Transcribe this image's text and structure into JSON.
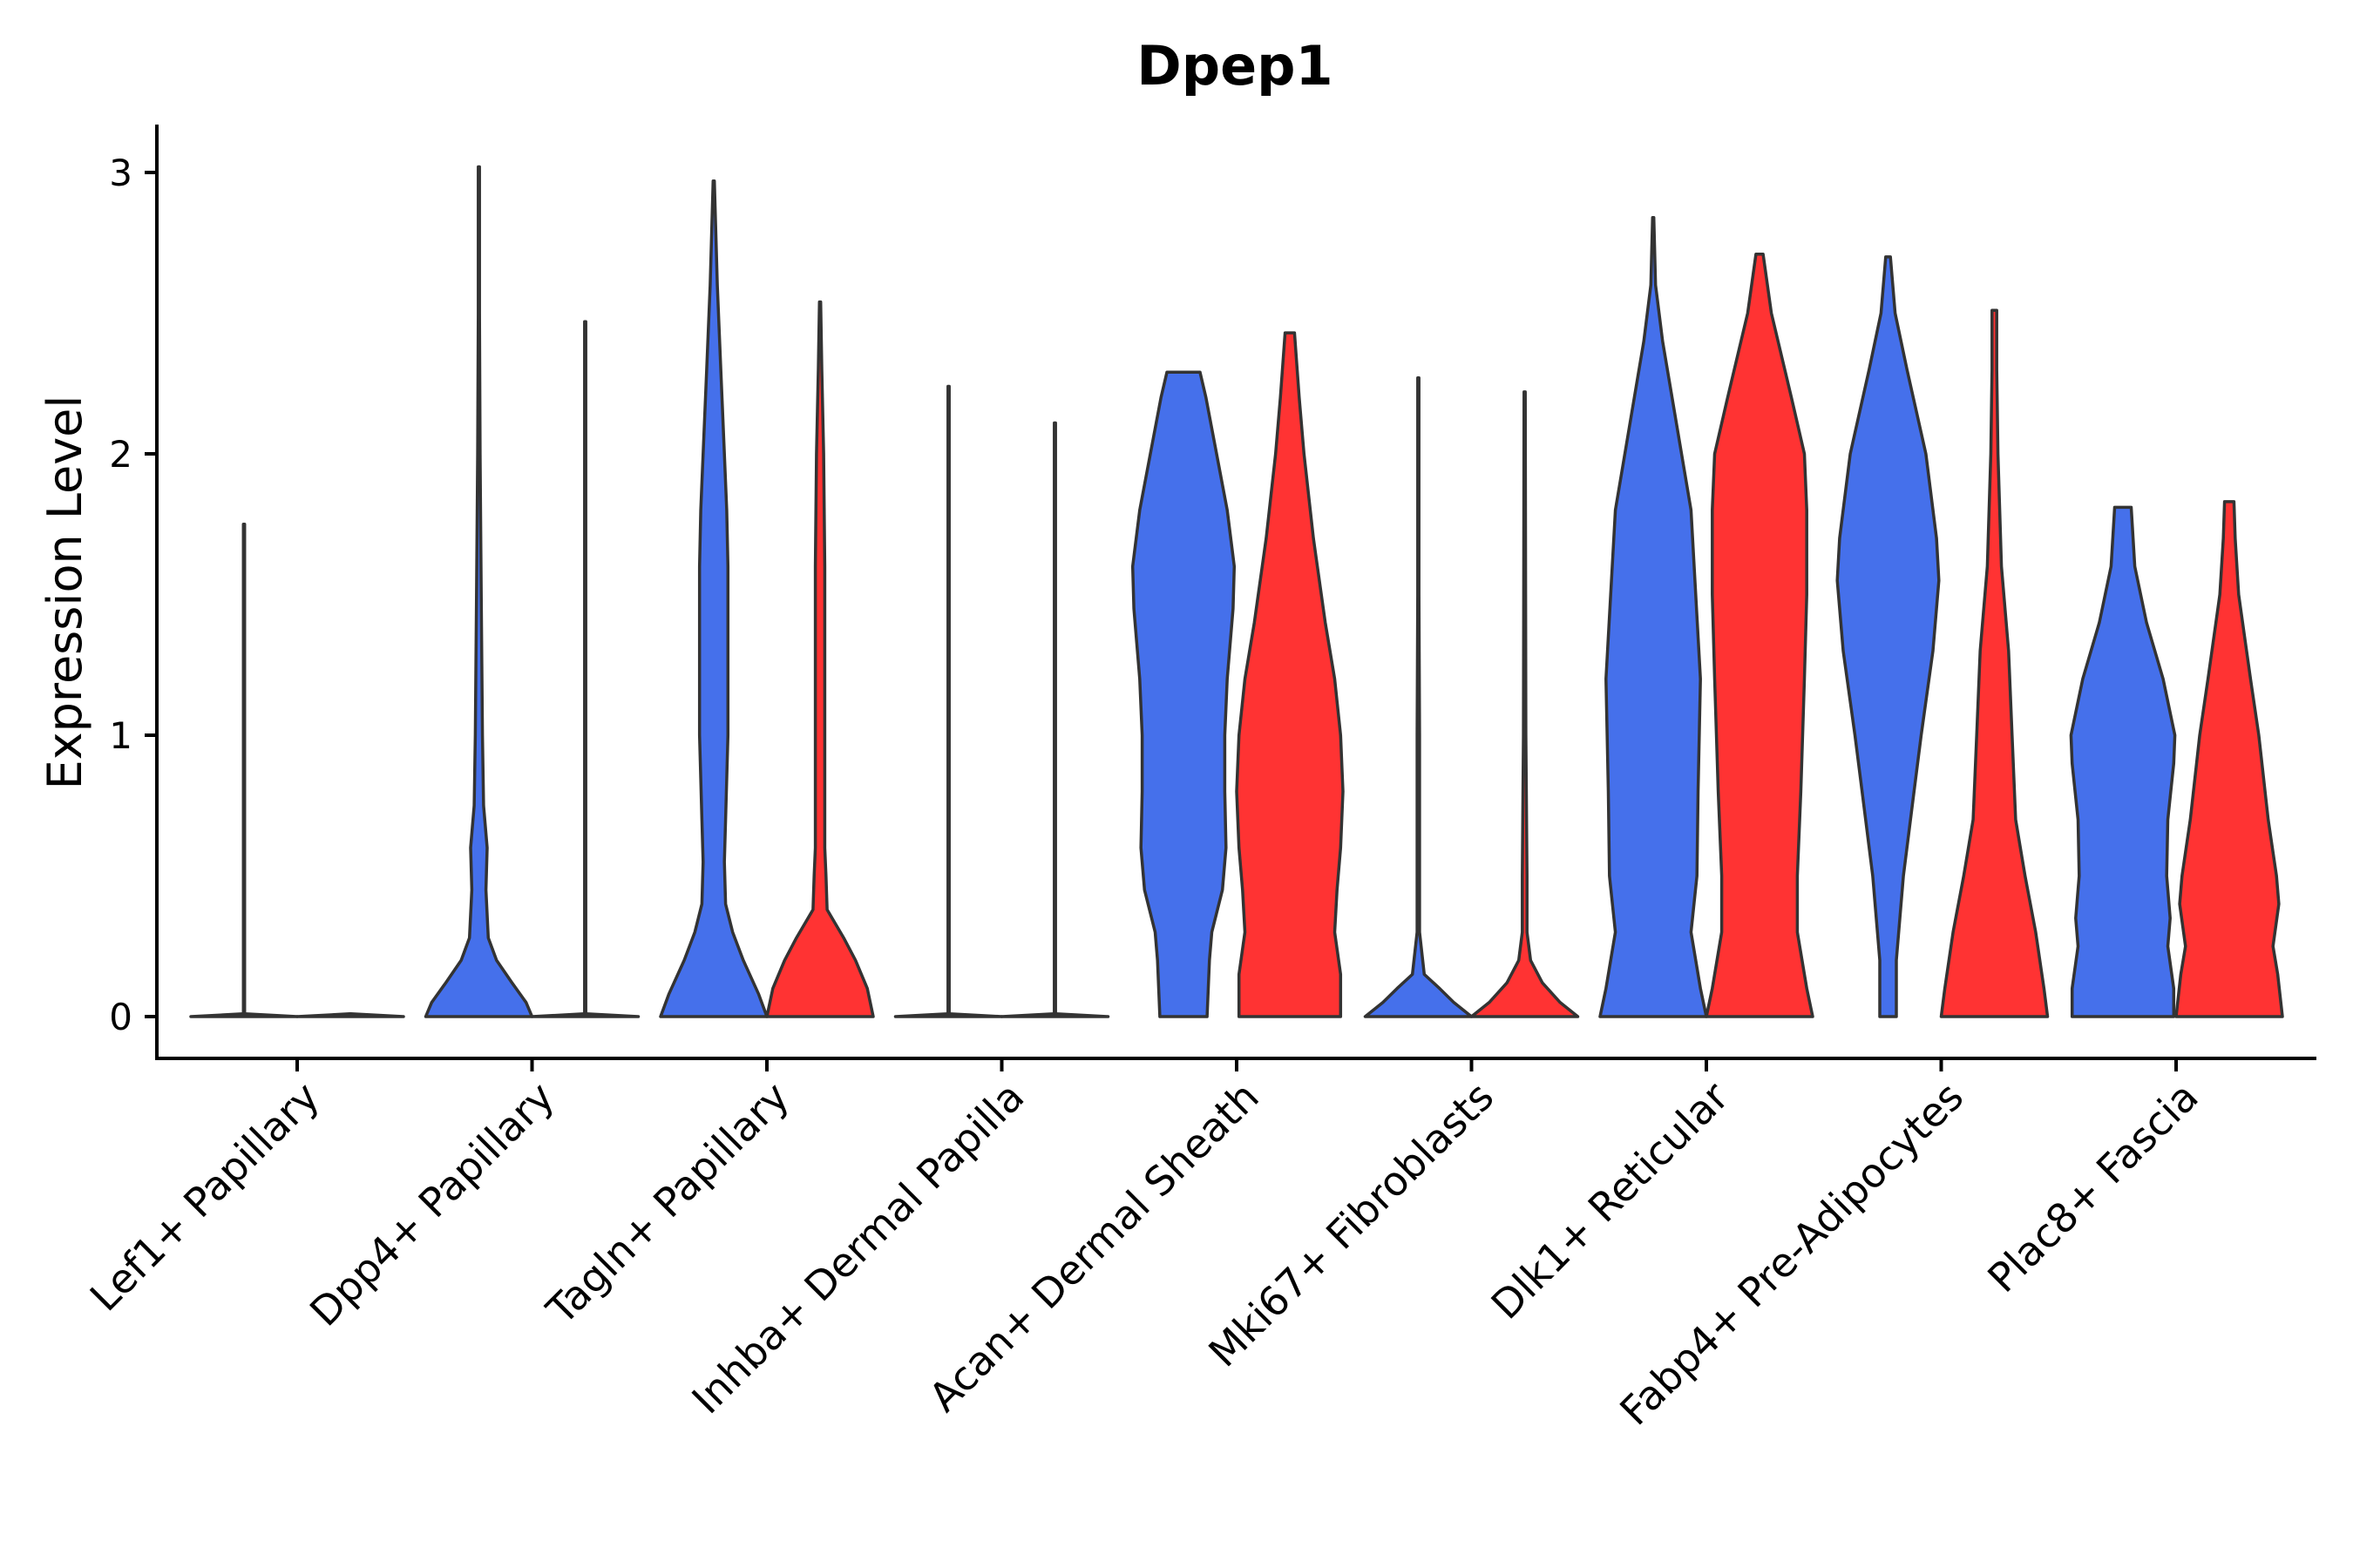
{
  "chart_data": {
    "type": "violin",
    "title": "Dpep1",
    "xlabel": "",
    "ylabel": "Expression Level",
    "ylim": [
      -0.15,
      3.2
    ],
    "yticks": [
      0,
      1,
      2,
      3
    ],
    "grid": false,
    "legend": "none",
    "group_colors": [
      "#4570EB",
      "#FF3333"
    ],
    "categories": [
      "Lef1+ Papillary",
      "Dpp4+ Papillary",
      "Tagln+ Papillary",
      "Inhba+ Dermal Papilla",
      "Acan+ Dermal Sheath",
      "Mki67+ Fibroblasts",
      "Dlk1+ Reticular",
      "Fabp4+ Pre-Adipocytes",
      "Plac8+ Fascia"
    ],
    "violins": [
      {
        "category": "Lef1+ Papillary",
        "group": 1,
        "max": 1.75,
        "profile": [
          [
            0,
            0.45
          ],
          [
            0.01,
            0.005
          ],
          [
            1.75,
            0.005
          ]
        ]
      },
      {
        "category": "Lef1+ Papillary",
        "group": 2,
        "max": 0.0,
        "profile": [
          [
            0,
            0.45
          ],
          [
            0.01,
            0.005
          ]
        ]
      },
      {
        "category": "Dpp4+ Papillary",
        "group": 1,
        "max": 3.02,
        "profile": [
          [
            0,
            0.45
          ],
          [
            0.05,
            0.4
          ],
          [
            0.12,
            0.28
          ],
          [
            0.2,
            0.15
          ],
          [
            0.28,
            0.08
          ],
          [
            0.45,
            0.06
          ],
          [
            0.6,
            0.07
          ],
          [
            0.75,
            0.04
          ],
          [
            1.0,
            0.03
          ],
          [
            1.5,
            0.02
          ],
          [
            2.0,
            0.01
          ],
          [
            2.5,
            0.005
          ],
          [
            3.02,
            0.005
          ]
        ]
      },
      {
        "category": "Dpp4+ Papillary",
        "group": 2,
        "max": 2.47,
        "profile": [
          [
            0,
            0.45
          ],
          [
            0.01,
            0.005
          ],
          [
            2.47,
            0.005
          ]
        ]
      },
      {
        "category": "Tagln+ Papillary",
        "group": 1,
        "max": 2.97,
        "profile": [
          [
            0,
            0.45
          ],
          [
            0.08,
            0.38
          ],
          [
            0.2,
            0.25
          ],
          [
            0.3,
            0.16
          ],
          [
            0.4,
            0.1
          ],
          [
            0.55,
            0.09
          ],
          [
            0.7,
            0.1
          ],
          [
            1.0,
            0.12
          ],
          [
            1.3,
            0.12
          ],
          [
            1.6,
            0.12
          ],
          [
            1.8,
            0.11
          ],
          [
            2.0,
            0.09
          ],
          [
            2.3,
            0.06
          ],
          [
            2.6,
            0.03
          ],
          [
            2.97,
            0.005
          ]
        ]
      },
      {
        "category": "Tagln+ Papillary",
        "group": 2,
        "max": 2.54,
        "profile": [
          [
            0,
            0.45
          ],
          [
            0.1,
            0.4
          ],
          [
            0.2,
            0.3
          ],
          [
            0.28,
            0.2
          ],
          [
            0.38,
            0.06
          ],
          [
            0.5,
            0.05
          ],
          [
            0.6,
            0.04
          ],
          [
            0.8,
            0.04
          ],
          [
            1.2,
            0.04
          ],
          [
            1.6,
            0.04
          ],
          [
            2.0,
            0.03
          ],
          [
            2.3,
            0.015
          ],
          [
            2.54,
            0.005
          ]
        ]
      },
      {
        "category": "Inhba+ Dermal Papilla",
        "group": 1,
        "max": 2.24,
        "profile": [
          [
            0,
            0.45
          ],
          [
            0.01,
            0.005
          ],
          [
            2.24,
            0.005
          ]
        ]
      },
      {
        "category": "Inhba+ Dermal Papilla",
        "group": 2,
        "max": 2.11,
        "profile": [
          [
            0,
            0.45
          ],
          [
            0.01,
            0.005
          ],
          [
            2.11,
            0.005
          ]
        ]
      },
      {
        "category": "Acan+ Dermal Sheath",
        "group": 1,
        "max": 2.29,
        "profile": [
          [
            0,
            0.2
          ],
          [
            0.2,
            0.22
          ],
          [
            0.3,
            0.24
          ],
          [
            0.45,
            0.33
          ],
          [
            0.6,
            0.36
          ],
          [
            0.8,
            0.35
          ],
          [
            1.0,
            0.35
          ],
          [
            1.2,
            0.37
          ],
          [
            1.45,
            0.42
          ],
          [
            1.6,
            0.43
          ],
          [
            1.8,
            0.37
          ],
          [
            2.0,
            0.28
          ],
          [
            2.2,
            0.19
          ],
          [
            2.29,
            0.14
          ]
        ]
      },
      {
        "category": "Acan+ Dermal Sheath",
        "group": 2,
        "max": 2.43,
        "profile": [
          [
            0,
            0.43
          ],
          [
            0.15,
            0.43
          ],
          [
            0.3,
            0.38
          ],
          [
            0.45,
            0.4
          ],
          [
            0.6,
            0.43
          ],
          [
            0.8,
            0.45
          ],
          [
            1.0,
            0.43
          ],
          [
            1.2,
            0.38
          ],
          [
            1.4,
            0.3
          ],
          [
            1.7,
            0.2
          ],
          [
            2.0,
            0.12
          ],
          [
            2.2,
            0.08
          ],
          [
            2.43,
            0.04
          ]
        ]
      },
      {
        "category": "Mki67+ Fibroblasts",
        "group": 1,
        "max": 2.27,
        "profile": [
          [
            0,
            0.45
          ],
          [
            0.05,
            0.3
          ],
          [
            0.1,
            0.18
          ],
          [
            0.15,
            0.05
          ],
          [
            0.3,
            0.01
          ],
          [
            0.6,
            0.01
          ],
          [
            1.0,
            0.01
          ],
          [
            1.5,
            0.005
          ],
          [
            2.27,
            0.005
          ]
        ]
      },
      {
        "category": "Mki67+ Fibroblasts",
        "group": 2,
        "max": 2.22,
        "profile": [
          [
            0,
            0.45
          ],
          [
            0.05,
            0.3
          ],
          [
            0.12,
            0.15
          ],
          [
            0.2,
            0.05
          ],
          [
            0.3,
            0.02
          ],
          [
            0.5,
            0.02
          ],
          [
            1.0,
            0.01
          ],
          [
            1.5,
            0.008
          ],
          [
            2.22,
            0.005
          ]
        ]
      },
      {
        "category": "Dlk1+ Reticular",
        "group": 1,
        "max": 2.84,
        "profile": [
          [
            0,
            0.45
          ],
          [
            0.1,
            0.4
          ],
          [
            0.3,
            0.32
          ],
          [
            0.5,
            0.37
          ],
          [
            0.8,
            0.38
          ],
          [
            1.2,
            0.4
          ],
          [
            1.5,
            0.36
          ],
          [
            1.8,
            0.32
          ],
          [
            2.1,
            0.2
          ],
          [
            2.4,
            0.08
          ],
          [
            2.6,
            0.02
          ],
          [
            2.84,
            0.005
          ]
        ]
      },
      {
        "category": "Dlk1+ Reticular",
        "group": 2,
        "max": 2.71,
        "profile": [
          [
            0,
            0.45
          ],
          [
            0.1,
            0.4
          ],
          [
            0.3,
            0.32
          ],
          [
            0.5,
            0.32
          ],
          [
            0.8,
            0.35
          ],
          [
            1.2,
            0.38
          ],
          [
            1.5,
            0.4
          ],
          [
            1.8,
            0.4
          ],
          [
            2.0,
            0.38
          ],
          [
            2.2,
            0.27
          ],
          [
            2.5,
            0.1
          ],
          [
            2.71,
            0.03
          ]
        ]
      },
      {
        "category": "Fabp4+ Pre-Adipocytes",
        "group": 1,
        "max": 2.7,
        "profile": [
          [
            0,
            0.07
          ],
          [
            0.2,
            0.07
          ],
          [
            0.3,
            0.09
          ],
          [
            0.5,
            0.13
          ],
          [
            0.8,
            0.22
          ],
          [
            1.0,
            0.28
          ],
          [
            1.3,
            0.38
          ],
          [
            1.55,
            0.43
          ],
          [
            1.7,
            0.41
          ],
          [
            2.0,
            0.32
          ],
          [
            2.3,
            0.16
          ],
          [
            2.5,
            0.06
          ],
          [
            2.7,
            0.02
          ]
        ]
      },
      {
        "category": "Fabp4+ Pre-Adipocytes",
        "group": 2,
        "max": 2.51,
        "profile": [
          [
            0,
            0.45
          ],
          [
            0.1,
            0.42
          ],
          [
            0.3,
            0.35
          ],
          [
            0.5,
            0.26
          ],
          [
            0.7,
            0.18
          ],
          [
            1.0,
            0.15
          ],
          [
            1.3,
            0.12
          ],
          [
            1.6,
            0.06
          ],
          [
            2.0,
            0.03
          ],
          [
            2.3,
            0.02
          ],
          [
            2.51,
            0.02
          ]
        ]
      },
      {
        "category": "Plac8+ Fascia",
        "group": 1,
        "max": 1.81,
        "profile": [
          [
            0,
            0.43
          ],
          [
            0.1,
            0.43
          ],
          [
            0.25,
            0.38
          ],
          [
            0.35,
            0.4
          ],
          [
            0.5,
            0.37
          ],
          [
            0.7,
            0.38
          ],
          [
            0.9,
            0.43
          ],
          [
            1.0,
            0.44
          ],
          [
            1.2,
            0.34
          ],
          [
            1.4,
            0.2
          ],
          [
            1.6,
            0.1
          ],
          [
            1.81,
            0.07
          ]
        ]
      },
      {
        "category": "Plac8+ Fascia",
        "group": 2,
        "max": 1.83,
        "profile": [
          [
            0,
            0.45
          ],
          [
            0.15,
            0.41
          ],
          [
            0.25,
            0.37
          ],
          [
            0.4,
            0.42
          ],
          [
            0.5,
            0.4
          ],
          [
            0.7,
            0.33
          ],
          [
            1.0,
            0.25
          ],
          [
            1.2,
            0.18
          ],
          [
            1.5,
            0.08
          ],
          [
            1.7,
            0.05
          ],
          [
            1.83,
            0.04
          ]
        ]
      }
    ]
  }
}
